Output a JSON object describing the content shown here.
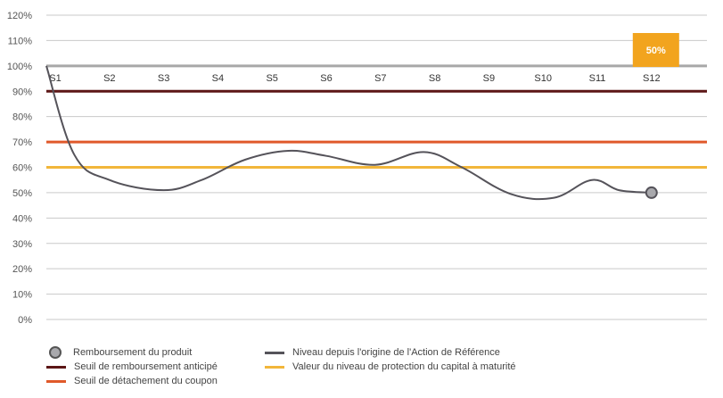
{
  "chart_data": {
    "type": "line",
    "y_ticks": [
      "120%",
      "110%",
      "100%",
      "90%",
      "80%",
      "70%",
      "60%",
      "50%",
      "40%",
      "30%",
      "20%",
      "10%",
      "0%"
    ],
    "ylim": [
      0,
      120
    ],
    "categories": [
      "S1",
      "S2",
      "S3",
      "S4",
      "S5",
      "S6",
      "S7",
      "S8",
      "S9",
      "S10",
      "S11",
      "S12"
    ],
    "series": [
      {
        "name": "Niveau depuis l'origine de l'Action de Référence",
        "color": "#55535a",
        "x": [
          0.0,
          0.35,
          1.0,
          2.0,
          2.7,
          3.5,
          4.3,
          5.0,
          5.9,
          6.8,
          7.5,
          8.4,
          9.2,
          9.9,
          10.4,
          11.0
        ],
        "values": [
          100,
          65,
          55,
          51,
          55,
          63,
          66.5,
          64.5,
          61,
          66,
          60,
          49.5,
          48,
          55,
          51,
          50
        ]
      }
    ],
    "thresholds": [
      {
        "name": "Seuil de remboursement anticipé",
        "value": 90,
        "color": "#5c1616"
      },
      {
        "name": "Seuil de détachement du coupon",
        "value": 70,
        "color": "#e0592a"
      },
      {
        "name": "Valeur du niveau de protection du capital à maturité",
        "value": 60,
        "color": "#f2b63a"
      },
      {
        "value": 100,
        "color": "#a8a8a8"
      }
    ],
    "end_marker": {
      "name": "Remboursement du produit",
      "x": 11.0,
      "value": 50,
      "label": "50%",
      "label_color": "#f2a41e"
    },
    "legend_position": "bottom",
    "grid": true
  }
}
